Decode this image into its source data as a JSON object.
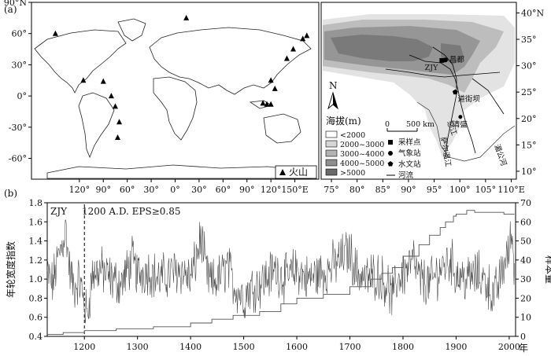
{
  "panel_a": {
    "label": "(a)",
    "world_map": {
      "lat_ticks": [
        "90°N",
        "60°",
        "30°",
        "0°",
        "-30°",
        "-60°"
      ],
      "lon_ticks": [
        "120°",
        "90°",
        "60°",
        "30°",
        "0°",
        "30°",
        "60°",
        "90°",
        "120°",
        "150°E"
      ],
      "legend_volcano": "火山",
      "volcanoes": [
        {
          "lon": -150,
          "lat": 60
        },
        {
          "lon": -115,
          "lat": 15
        },
        {
          "lon": -90,
          "lat": 14
        },
        {
          "lon": -80,
          "lat": 0
        },
        {
          "lon": -75,
          "lat": -10
        },
        {
          "lon": -70,
          "lat": -25
        },
        {
          "lon": -72,
          "lat": -40
        },
        {
          "lon": 14,
          "lat": 75
        },
        {
          "lon": 115,
          "lat": -8
        },
        {
          "lon": 120,
          "lat": 15
        },
        {
          "lon": 125,
          "lat": 7
        },
        {
          "lon": 140,
          "lat": 36
        },
        {
          "lon": 148,
          "lat": 45
        },
        {
          "lon": 160,
          "lat": 55
        },
        {
          "lon": 165,
          "lat": 58
        },
        {
          "lon": 110,
          "lat": -7
        },
        {
          "lon": 120,
          "lat": -8
        }
      ]
    },
    "regional_map": {
      "lat_ticks": [
        "40°N",
        "35°",
        "30°",
        "25°",
        "20°",
        "15°",
        "10°"
      ],
      "lon_ticks": [
        "75°",
        "80°",
        "85°",
        "90°",
        "95°",
        "100°",
        "105°",
        "110°E"
      ],
      "north_label": "N",
      "legend_title": "海拔(m)",
      "elevation_classes": [
        {
          "label": "<2000",
          "color": "#ffffff"
        },
        {
          "label": "2000~3000",
          "color": "#d6d6d6"
        },
        {
          "label": "3000~4000",
          "color": "#b3b3b3"
        },
        {
          "label": "4000~5000",
          "color": "#8f8f8f"
        },
        {
          "label": ">5000",
          "color": "#6a6a6a"
        }
      ],
      "scale_labels": [
        "0",
        "500 km"
      ],
      "symbol_legend": [
        "采样点",
        "气象站",
        "水文站",
        "河流"
      ],
      "places": [
        {
          "name": "ZJY",
          "lon": 96.5,
          "lat": 31
        },
        {
          "name": "昌都",
          "lon": 97.2,
          "lat": 31.1
        },
        {
          "name": "道街坝",
          "lon": 99.1,
          "lat": 25
        },
        {
          "name": "清盛",
          "lon": 100.1,
          "lat": 20.3
        }
      ],
      "river_labels": [
        "怒江",
        "萨尔温江",
        "湄公河"
      ]
    }
  },
  "chart_data": {
    "type": "line",
    "panel_label": "(b)",
    "site_label": "ZJY",
    "annotation": "1200 A.D.  EPS≥0.85",
    "marker_year": 1200,
    "x_ticks": [
      1200,
      1300,
      1400,
      1500,
      1600,
      1700,
      1800,
      1900,
      2000
    ],
    "xlabel_suffix": "年",
    "xlim": [
      1130,
      2012
    ],
    "ylabel_left": "年轮宽度指数",
    "ylim_left": [
      0.4,
      1.8
    ],
    "yticks_left": [
      0.4,
      0.6,
      0.8,
      1.0,
      1.2,
      1.4,
      1.6,
      1.8
    ],
    "ylabel_right": "样本量",
    "ylim_right": [
      0,
      70
    ],
    "yticks_right": [
      0,
      10,
      20,
      30,
      40,
      50,
      60,
      70
    ],
    "series": [
      {
        "role": "ring width index",
        "x_start": 1130,
        "x_end": 2010,
        "anchors": [
          [
            1130,
            1.05
          ],
          [
            1140,
            0.95
          ],
          [
            1150,
            1.2
          ],
          [
            1160,
            1.4
          ],
          [
            1165,
            1.55
          ],
          [
            1172,
            1.1
          ],
          [
            1180,
            0.9
          ],
          [
            1190,
            1.0
          ],
          [
            1200,
            0.75
          ],
          [
            1205,
            0.6
          ],
          [
            1215,
            1.05
          ],
          [
            1230,
            1.1
          ],
          [
            1250,
            1.0
          ],
          [
            1270,
            0.95
          ],
          [
            1290,
            1.2
          ],
          [
            1300,
            1.05
          ],
          [
            1320,
            1.1
          ],
          [
            1340,
            1.0
          ],
          [
            1360,
            1.05
          ],
          [
            1380,
            1.1
          ],
          [
            1400,
            1.0
          ],
          [
            1410,
            1.2
          ],
          [
            1420,
            1.45
          ],
          [
            1430,
            1.05
          ],
          [
            1440,
            0.95
          ],
          [
            1460,
            1.05
          ],
          [
            1470,
            1.15
          ],
          [
            1480,
            0.95
          ],
          [
            1500,
            0.8
          ],
          [
            1510,
            0.9
          ],
          [
            1530,
            0.95
          ],
          [
            1550,
            1.05
          ],
          [
            1560,
            1.1
          ],
          [
            1580,
            1.0
          ],
          [
            1600,
            1.1
          ],
          [
            1620,
            1.0
          ],
          [
            1640,
            1.05
          ],
          [
            1660,
            1.1
          ],
          [
            1680,
            1.2
          ],
          [
            1700,
            1.3
          ],
          [
            1710,
            1.1
          ],
          [
            1730,
            1.0
          ],
          [
            1750,
            1.05
          ],
          [
            1770,
            0.95
          ],
          [
            1780,
            0.8
          ],
          [
            1790,
            1.0
          ],
          [
            1800,
            1.05
          ],
          [
            1820,
            1.2
          ],
          [
            1830,
            1.0
          ],
          [
            1850,
            0.95
          ],
          [
            1870,
            1.1
          ],
          [
            1890,
            1.2
          ],
          [
            1900,
            1.05
          ],
          [
            1920,
            1.0
          ],
          [
            1940,
            1.05
          ],
          [
            1960,
            0.95
          ],
          [
            1970,
            0.8
          ],
          [
            1980,
            0.95
          ],
          [
            1990,
            1.15
          ],
          [
            2000,
            1.3
          ],
          [
            2005,
            1.5
          ],
          [
            2010,
            1.1
          ]
        ]
      },
      {
        "role": "sample size",
        "steps": [
          [
            1130,
            1
          ],
          [
            1160,
            2
          ],
          [
            1200,
            3
          ],
          [
            1260,
            4
          ],
          [
            1330,
            5
          ],
          [
            1400,
            7
          ],
          [
            1440,
            9
          ],
          [
            1480,
            11
          ],
          [
            1530,
            13
          ],
          [
            1570,
            17
          ],
          [
            1600,
            20
          ],
          [
            1650,
            22
          ],
          [
            1700,
            26
          ],
          [
            1740,
            30
          ],
          [
            1760,
            33
          ],
          [
            1780,
            36
          ],
          [
            1800,
            42
          ],
          [
            1830,
            48
          ],
          [
            1850,
            53
          ],
          [
            1870,
            57
          ],
          [
            1880,
            60
          ],
          [
            1895,
            63
          ],
          [
            1900,
            64
          ],
          [
            1920,
            66
          ],
          [
            1935,
            65
          ],
          [
            1990,
            64
          ],
          [
            2010,
            64
          ]
        ]
      }
    ]
  }
}
